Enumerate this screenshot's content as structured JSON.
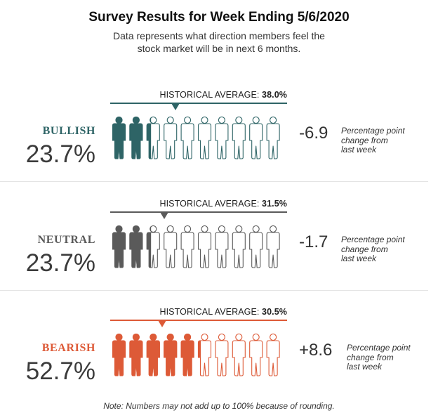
{
  "title": "Survey Results for Week Ending 5/6/2020",
  "subtitle_lines": [
    "Data represents what direction members feel the",
    "stock market will be in next 6 months."
  ],
  "historical_prefix": "HISTORICAL AVERAGE: ",
  "note": "Note: Numbers may not add up to 100% because of rounding.",
  "change_desc_lines": [
    "Percentage point",
    "change from",
    "last week"
  ],
  "icon": "person-icon",
  "chart_data": {
    "type": "pictograph",
    "title": "Survey Results for Week Ending 5/6/2020",
    "people_per_row": 10,
    "categories": [
      {
        "name": "BULLISH",
        "percent": 23.7,
        "display": "23.7%",
        "historical_average": 38.0,
        "historical_display": "38.0%",
        "change": -6.9,
        "change_display": "-6.9",
        "color": "#2e6466"
      },
      {
        "name": "NEUTRAL",
        "percent": 23.7,
        "display": "23.7%",
        "historical_average": 31.5,
        "historical_display": "31.5%",
        "change": -1.7,
        "change_display": "-1.7",
        "color": "#5a5a5a"
      },
      {
        "name": "BEARISH",
        "percent": 52.7,
        "display": "52.7%",
        "historical_average": 30.5,
        "historical_display": "30.5%",
        "change": 8.6,
        "change_display": "+8.6",
        "color": "#dd5a37"
      }
    ]
  }
}
